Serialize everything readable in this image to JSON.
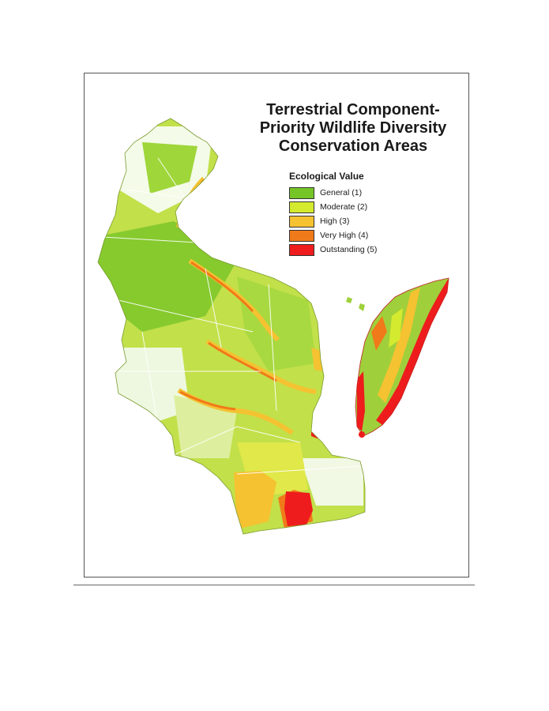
{
  "map": {
    "title_lines": [
      "Terrestrial Component-",
      "Priority Wildlife Diversity",
      "Conservation Areas"
    ],
    "legend": {
      "title": "Ecological Value",
      "items": [
        {
          "label": "General (1)",
          "color": "#76c526"
        },
        {
          "label": "Moderate (2)",
          "color": "#d4ea2e"
        },
        {
          "label": "High (3)",
          "color": "#f5c231"
        },
        {
          "label": "Very High (4)",
          "color": "#f07a1a"
        },
        {
          "label": "Outstanding (5)",
          "color": "#ee1c1c"
        }
      ]
    },
    "colors": {
      "border": "#555555",
      "boundary_lines": "#ffffff",
      "mainland_base": "#b8dc4a",
      "peninsula_base": "#9fd03c"
    }
  }
}
